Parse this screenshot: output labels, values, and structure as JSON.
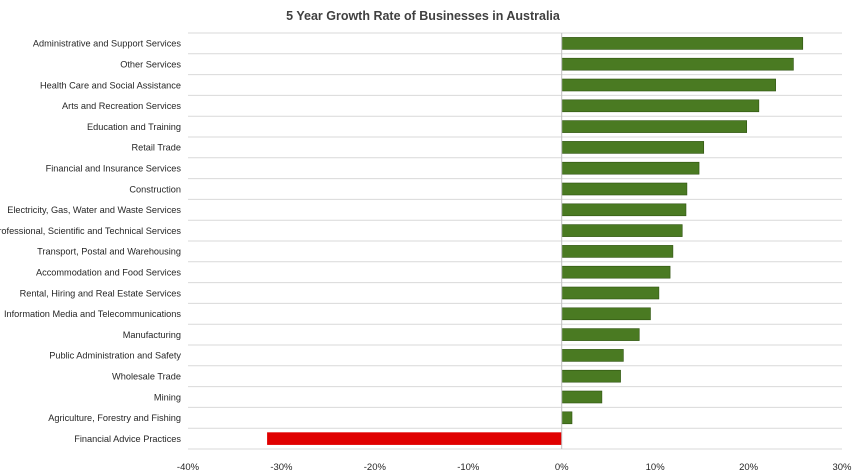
{
  "chart_data": {
    "type": "bar",
    "orientation": "horizontal",
    "title": "5 Year Growth Rate of Businesses in Australia",
    "xlabel": "",
    "ylabel": "",
    "categories": [
      "Administrative and Support Services",
      "Other Services",
      "Health Care and Social Assistance",
      "Arts and Recreation Services",
      "Education and Training",
      "Retail Trade",
      "Financial and Insurance Services",
      "Construction",
      "Electricity, Gas, Water and Waste Services",
      "Professional, Scientific and Technical Services",
      "Transport, Postal and Warehousing",
      "Accommodation and Food Services",
      "Rental, Hiring and Real Estate Services",
      "Information Media and Telecommunications",
      "Manufacturing",
      "Public Administration and Safety",
      "Wholesale Trade",
      "Mining",
      "Agriculture, Forestry and Fishing",
      "Financial Advice Practices"
    ],
    "values": [
      25.8,
      24.8,
      22.9,
      21.1,
      19.8,
      15.2,
      14.7,
      13.4,
      13.3,
      12.9,
      11.9,
      11.6,
      10.4,
      9.5,
      8.3,
      6.6,
      6.3,
      4.3,
      1.1,
      -31.5
    ],
    "xlim": [
      -40,
      30
    ],
    "ticks": [
      -40,
      -30,
      -20,
      -10,
      0,
      10,
      20,
      30
    ],
    "tick_labels": [
      "-40%",
      "-30%",
      "-20%",
      "-10%",
      "0%",
      "10%",
      "20%",
      "30%"
    ],
    "colors": {
      "positive": "#4a7a22",
      "positive_border": "#2e5210",
      "negative": "#e00000",
      "gridline": "#d9d9d9",
      "axis": "#bfbfbf"
    },
    "grid": "horizontal",
    "legend": "none"
  }
}
